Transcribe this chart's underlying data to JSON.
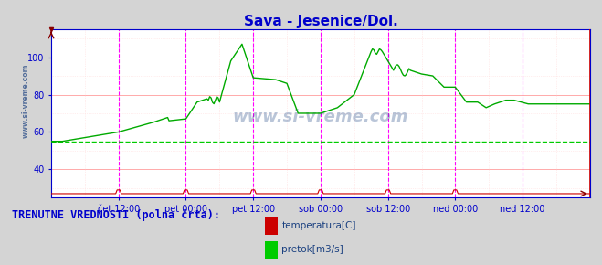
{
  "title": "Sava - Jesenice/Dol.",
  "title_color": "#0000cc",
  "title_fontsize": 11,
  "bg_color": "#d4d4d4",
  "plot_bg_color": "#ffffff",
  "ylabel_color": "#0000cc",
  "xlabel_color": "#0000cc",
  "watermark": "www.si-vreme.com",
  "watermark_color": "#1a4080",
  "watermark_alpha": 0.3,
  "tick_labels": [
    "čet 12:00",
    "pet 00:00",
    "pet 12:00",
    "sob 00:00",
    "sob 12:00",
    "ned 00:00",
    "ned 12:00"
  ],
  "tick_positions": [
    24,
    48,
    72,
    96,
    120,
    144,
    168
  ],
  "vline_positions": [
    24,
    48,
    72,
    96,
    120,
    144,
    168
  ],
  "ylim": [
    25,
    115
  ],
  "yticks": [
    40,
    60,
    80,
    100
  ],
  "xlim": [
    0,
    192
  ],
  "legend_label1": "temperatura[C]",
  "legend_label2": "pretok[m3/s]",
  "legend_color1": "#cc0000",
  "legend_color2": "#00cc00",
  "bottom_text": "TRENUTNE VREDNOSTI (polna črta):",
  "bottom_text_color": "#0000cc",
  "temp_color": "#cc0000",
  "flow_color": "#00aa00",
  "dashed_line_color": "#00cc00",
  "dashed_line_y": 55,
  "spine_color": "#0000cc",
  "grid_h_color": "#ffaaaa",
  "grid_h_minor_color": "#ffdddd",
  "grid_v_color": "#ffaaaa",
  "grid_v_minor_color": "#ffdddd",
  "vline_magenta": "#ff00ff"
}
